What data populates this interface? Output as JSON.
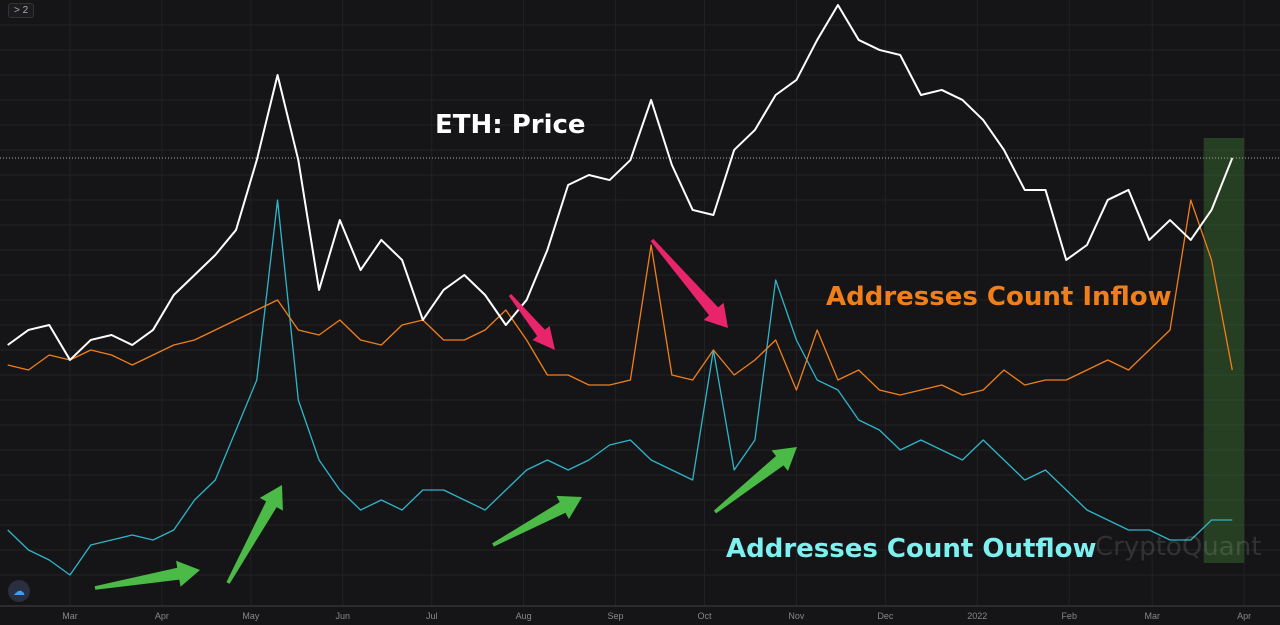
{
  "toolbar": {
    "collapse_label": "> 2"
  },
  "watermark": "CryptoQuant",
  "chart_data": {
    "type": "line",
    "x_unit": "days since 2021-03-01",
    "x": [
      -21,
      -14,
      -7,
      0,
      7,
      14,
      21,
      28,
      35,
      42,
      49,
      56,
      63,
      70,
      77,
      84,
      91,
      98,
      105,
      112,
      119,
      126,
      133,
      140,
      147,
      154,
      161,
      168,
      175,
      182,
      189,
      196,
      203,
      210,
      217,
      224,
      231,
      238,
      245,
      252,
      259,
      266,
      273,
      280,
      287,
      294,
      301,
      308,
      315,
      322,
      329,
      336,
      343,
      350,
      357,
      364,
      371,
      378,
      385,
      392
    ],
    "xticks": [
      {
        "d": 0,
        "label": "Mar"
      },
      {
        "d": 31,
        "label": "Apr"
      },
      {
        "d": 61,
        "label": "May"
      },
      {
        "d": 92,
        "label": "Jun"
      },
      {
        "d": 122,
        "label": "Jul"
      },
      {
        "d": 153,
        "label": "Aug"
      },
      {
        "d": 184,
        "label": "Sep"
      },
      {
        "d": 214,
        "label": "Oct"
      },
      {
        "d": 245,
        "label": "Nov"
      },
      {
        "d": 275,
        "label": "Dec"
      },
      {
        "d": 306,
        "label": "2022"
      },
      {
        "d": 337,
        "label": "Feb"
      },
      {
        "d": 365,
        "label": "Mar"
      },
      {
        "d": 396,
        "label": "Apr"
      }
    ],
    "series": [
      {
        "name": "ETH: Price",
        "color": "#ffffff",
        "values": [
          1638,
          1778,
          1824,
          1499,
          1685,
          1731,
          1638,
          1778,
          2103,
          2289,
          2475,
          2708,
          3358,
          4149,
          3358,
          2150,
          2800,
          2335,
          2615,
          2429,
          1871,
          2150,
          2289,
          2103,
          1824,
          2057,
          2522,
          3126,
          3219,
          3172,
          3358,
          3917,
          3312,
          2894,
          2847,
          3452,
          3638,
          3963,
          4103,
          4475,
          4800,
          4475,
          4382,
          4335,
          3963,
          4010,
          3917,
          3730,
          3452,
          3080,
          3080,
          2429,
          2568,
          2987,
          3080,
          2615,
          2800,
          2615,
          2894,
          3377
        ]
      },
      {
        "name": "Addresses Count Inflow",
        "color": "#f07f1a",
        "values": [
          235,
          230,
          245,
          240,
          250,
          245,
          235,
          245,
          255,
          260,
          270,
          280,
          290,
          300,
          270,
          265,
          280,
          260,
          255,
          275,
          280,
          260,
          260,
          270,
          290,
          260,
          225,
          225,
          215,
          215,
          220,
          355,
          225,
          220,
          250,
          225,
          240,
          260,
          210,
          270,
          220,
          230,
          210,
          205,
          210,
          215,
          205,
          210,
          230,
          215,
          220,
          220,
          230,
          240,
          230,
          250,
          270,
          400,
          340,
          230
        ]
      },
      {
        "name": "Addresses Count Outflow",
        "color": "#2fb5c8",
        "values": [
          70,
          50,
          40,
          25,
          55,
          60,
          65,
          60,
          70,
          100,
          120,
          170,
          220,
          400,
          200,
          140,
          110,
          90,
          100,
          90,
          110,
          110,
          100,
          90,
          110,
          130,
          140,
          130,
          140,
          155,
          160,
          140,
          130,
          120,
          250,
          130,
          160,
          320,
          260,
          220,
          210,
          180,
          170,
          150,
          160,
          150,
          140,
          160,
          140,
          120,
          130,
          110,
          90,
          80,
          70,
          70,
          60,
          60,
          80,
          80
        ]
      }
    ],
    "labels": {
      "price": "ETH: Price",
      "inflow": "Addresses Count Inflow",
      "outflow": "Addresses Count Outflow"
    },
    "reference_line": 3377,
    "highlight_range_days": [
      380,
      396
    ]
  }
}
